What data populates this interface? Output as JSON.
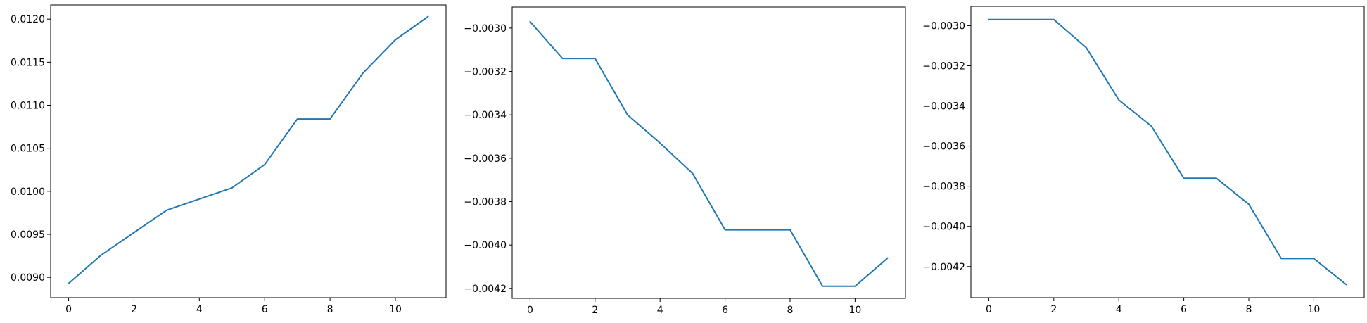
{
  "figure": {
    "line_color": "#1f77b4",
    "axes_color": "#000000",
    "background": "#ffffff"
  },
  "chart_data": [
    {
      "type": "line",
      "title": "",
      "xlabel": "",
      "ylabel": "",
      "grid": false,
      "legend": "none",
      "xlim": [
        -0.55,
        11.55
      ],
      "ylim": [
        0.008764,
        0.012165
      ],
      "xticks": [
        0,
        2,
        4,
        6,
        8,
        10
      ],
      "xtick_labels": [
        "0",
        "2",
        "4",
        "6",
        "8",
        "10"
      ],
      "yticks": [
        0.009,
        0.0095,
        0.01,
        0.0105,
        0.011,
        0.0115,
        0.012
      ],
      "ytick_labels": [
        "0.0090",
        "0.0095",
        "0.0100",
        "0.0105",
        "0.0110",
        "0.0115",
        "0.0120"
      ],
      "series": [
        {
          "x": [
            0,
            1,
            2,
            3,
            4,
            5,
            6,
            7,
            8,
            9,
            10,
            11
          ],
          "y": [
            0.00893,
            0.00926,
            0.00952,
            0.00978,
            0.00991,
            0.01004,
            0.01031,
            0.01084,
            0.01084,
            0.01137,
            0.01176,
            0.01203
          ]
        }
      ]
    },
    {
      "type": "line",
      "title": "",
      "xlabel": "",
      "ylabel": "",
      "grid": false,
      "legend": "none",
      "xlim": [
        -0.55,
        11.55
      ],
      "ylim": [
        -0.004246,
        -0.002903
      ],
      "xticks": [
        0,
        2,
        4,
        6,
        8,
        10
      ],
      "xtick_labels": [
        "0",
        "2",
        "4",
        "6",
        "8",
        "10"
      ],
      "yticks": [
        -0.003,
        -0.0032,
        -0.0034,
        -0.0036,
        -0.0038,
        -0.004,
        -0.0042
      ],
      "ytick_labels": [
        "−0.0030",
        "−0.0032",
        "−0.0034",
        "−0.0036",
        "−0.0038",
        "−0.0040",
        "−0.0042"
      ],
      "series": [
        {
          "x": [
            0,
            1,
            2,
            3,
            4,
            5,
            6,
            7,
            8,
            9,
            10,
            11
          ],
          "y": [
            -0.00297,
            -0.00314,
            -0.00314,
            -0.0034,
            -0.00353,
            -0.00367,
            -0.00393,
            -0.00393,
            -0.00393,
            -0.00419,
            -0.00419,
            -0.00406
          ]
        }
      ]
    },
    {
      "type": "line",
      "title": "",
      "xlabel": "",
      "ylabel": "",
      "grid": false,
      "legend": "none",
      "xlim": [
        -0.55,
        11.55
      ],
      "ylim": [
        -0.004355,
        -0.002904
      ],
      "xticks": [
        0,
        2,
        4,
        6,
        8,
        10
      ],
      "xtick_labels": [
        "0",
        "2",
        "4",
        "6",
        "8",
        "10"
      ],
      "yticks": [
        -0.003,
        -0.0032,
        -0.0034,
        -0.0036,
        -0.0038,
        -0.004,
        -0.0042
      ],
      "ytick_labels": [
        "−0.0030",
        "−0.0032",
        "−0.0034",
        "−0.0036",
        "−0.0038",
        "−0.0040",
        "−0.0042"
      ],
      "series": [
        {
          "x": [
            0,
            1,
            2,
            3,
            4,
            5,
            6,
            7,
            8,
            9,
            10,
            11
          ],
          "y": [
            -0.00297,
            -0.00297,
            -0.00297,
            -0.00311,
            -0.00337,
            -0.0035,
            -0.00376,
            -0.00376,
            -0.00389,
            -0.00416,
            -0.00416,
            -0.00429
          ]
        }
      ]
    }
  ]
}
